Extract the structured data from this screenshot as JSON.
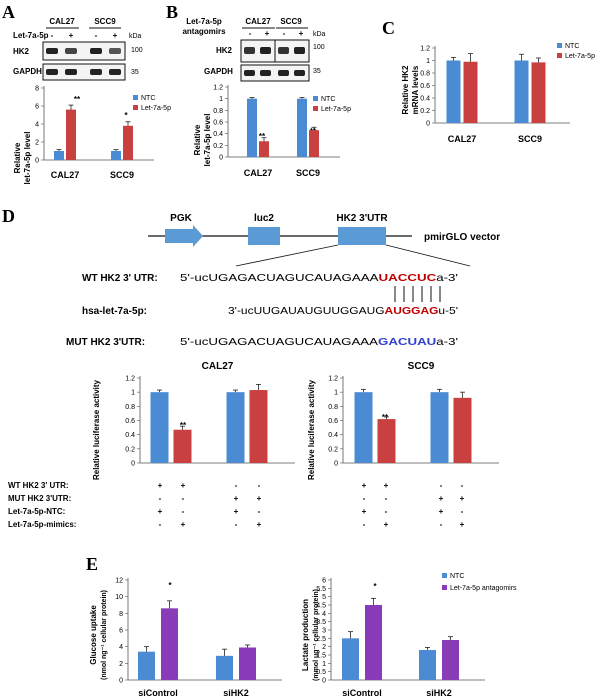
{
  "panels": {
    "A": {
      "letter": "A",
      "cells": [
        "CAL27",
        "SCC9"
      ],
      "row_label": "Let-7a-5p",
      "signs": [
        "-",
        "+",
        "-",
        "+"
      ],
      "blot_labels": [
        "HK2",
        "GAPDH"
      ],
      "kda": "kDa",
      "markers": [
        "100",
        "35"
      ],
      "ylabel": [
        "Relative",
        "let-7a-5p level"
      ],
      "sig": [
        "**",
        "*"
      ]
    },
    "B": {
      "letter": "B",
      "cells": [
        "CAL27",
        "SCC9"
      ],
      "row_label": [
        "Let-7a-5p",
        "antagomirs"
      ],
      "signs": [
        "-",
        "+",
        "-",
        "+"
      ],
      "blot_labels": [
        "HK2",
        "GAPDH"
      ],
      "kda": "kDa",
      "markers": [
        "100",
        "35"
      ],
      "ylabel": [
        "Relative",
        "let-7a-5p level"
      ],
      "sig": [
        "**",
        "**"
      ]
    },
    "C": {
      "letter": "C",
      "ylabel": [
        "Relative HK2",
        "mRNA levels"
      ]
    },
    "D": {
      "letter": "D",
      "map": {
        "pgk": "PGK",
        "luc2": "luc2",
        "utr": "HK2 3'UTR",
        "vector": "pmirGLO vector"
      },
      "wt": {
        "label": "WT HK2 3' UTR:",
        "prefix": "5'-ucUGAGACUAGUCAUAGAAA",
        "site": "UACCUC",
        "suffix": "a-3'"
      },
      "mir": {
        "label": "hsa-let-7a-5p:",
        "prefix": "3'-ucUUGAUAUGUUGGAUG",
        "site": "AUGGAG",
        "suffix": "u-5'"
      },
      "mut": {
        "label": "MUT HK2 3'UTR:",
        "prefix": "5'-ucUGAGACUAGUCAUAGAAA",
        "site": "GACUAU",
        "suffix": "a-3'"
      },
      "ylabel": "Relative luciferase activity",
      "sig": [
        "**",
        "**"
      ],
      "table": [
        {
          "label": "WT HK2 3' UTR:",
          "signs": [
            "+",
            "+",
            "-",
            "-"
          ]
        },
        {
          "label": "MUT HK2 3'UTR:",
          "signs": [
            "-",
            "-",
            "+",
            "+"
          ]
        },
        {
          "label": "Let-7a-5p-NTC:",
          "signs": [
            "+",
            "-",
            "+",
            "-"
          ]
        },
        {
          "label": "Let-7a-5p-mimics:",
          "signs": [
            "-",
            "+",
            "-",
            "+"
          ]
        }
      ]
    },
    "E": {
      "letter": "E",
      "ylabel_left": [
        "Glucose uptake",
        "(nmol ng⁻¹ cellular protein)"
      ],
      "ylabel_right": [
        "Lactate production",
        "(mmol ug⁻¹ cellular protein)"
      ],
      "sig": [
        "*",
        "*"
      ]
    }
  },
  "colors": {
    "blue": "#4a8bd4",
    "red": "#c94040",
    "purple": "#8a3cb8",
    "seq_red": "#c00000",
    "seq_blue": "#2f3fd0"
  },
  "chart_data": [
    {
      "id": "A",
      "type": "bar",
      "categories": [
        "CAL27",
        "SCC9"
      ],
      "series": [
        {
          "name": "NTC",
          "values": [
            1,
            1
          ]
        },
        {
          "name": "Let-7a-5p",
          "values": [
            5.6,
            3.8
          ]
        }
      ],
      "errors": [
        [
          0.15,
          0.15
        ],
        [
          0.5,
          0.45
        ]
      ],
      "ylim": [
        0,
        8
      ],
      "yticks": [
        0,
        2,
        4,
        6,
        8
      ],
      "legend": "top-right"
    },
    {
      "id": "B",
      "type": "bar",
      "categories": [
        "CAL27",
        "SCC9"
      ],
      "series": [
        {
          "name": "NTC",
          "values": [
            1,
            1
          ]
        },
        {
          "name": "Let-7a-5p",
          "values": [
            0.27,
            0.46
          ]
        }
      ],
      "errors": [
        [
          0.02,
          0.02
        ],
        [
          0.06,
          0.05
        ]
      ],
      "ylim": [
        0,
        1.2
      ],
      "yticks": [
        0,
        0.2,
        0.4,
        0.6,
        0.8,
        1,
        1.2
      ],
      "legend": "top-right"
    },
    {
      "id": "C",
      "type": "bar",
      "categories": [
        "CAL27",
        "SCC9"
      ],
      "series": [
        {
          "name": "NTC",
          "values": [
            1,
            1
          ]
        },
        {
          "name": "Let-7a-5p",
          "values": [
            0.98,
            0.97
          ]
        }
      ],
      "errors": [
        [
          0.05,
          0.1
        ],
        [
          0.13,
          0.07
        ]
      ],
      "ylim": [
        0,
        1.2
      ],
      "yticks": [
        0,
        0.2,
        0.4,
        0.6,
        0.8,
        1,
        1.2
      ],
      "legend": "top-right"
    },
    {
      "id": "D-CAL27",
      "type": "bar",
      "title": "CAL27",
      "categories": [
        "WT",
        "MUT"
      ],
      "series": [
        {
          "values": [
            1,
            1
          ]
        },
        {
          "values": [
            0.47,
            1.03
          ]
        }
      ],
      "errors": [
        [
          0.03,
          0.03
        ],
        [
          0.05,
          0.08
        ]
      ],
      "ylim": [
        0,
        1.2
      ],
      "yticks": [
        0,
        0.2,
        0.4,
        0.6,
        0.8,
        1,
        1.2
      ]
    },
    {
      "id": "D-SCC9",
      "type": "bar",
      "title": "SCC9",
      "categories": [
        "WT",
        "MUT"
      ],
      "series": [
        {
          "values": [
            1,
            1
          ]
        },
        {
          "values": [
            0.62,
            0.92
          ]
        }
      ],
      "errors": [
        [
          0.04,
          0.04
        ],
        [
          0.03,
          0.08
        ]
      ],
      "ylim": [
        0,
        1.2
      ],
      "yticks": [
        0,
        0.2,
        0.4,
        0.6,
        0.8,
        1,
        1.2
      ]
    },
    {
      "id": "E-glucose",
      "type": "bar",
      "categories": [
        "siControl",
        "siHK2"
      ],
      "series": [
        {
          "name": "NTC",
          "values": [
            3.4,
            2.9
          ]
        },
        {
          "name": "Let-7a-5p antagomirs",
          "values": [
            8.6,
            3.9
          ]
        }
      ],
      "errors": [
        [
          0.6,
          0.8
        ],
        [
          0.9,
          0.3
        ]
      ],
      "ylim": [
        0,
        12
      ],
      "yticks": [
        0,
        2,
        4,
        6,
        8,
        10,
        12
      ]
    },
    {
      "id": "E-lactate",
      "type": "bar",
      "categories": [
        "siControl",
        "siHK2"
      ],
      "series": [
        {
          "name": "NTC",
          "values": [
            2.5,
            1.8
          ]
        },
        {
          "name": "Let-7a-5p antagomirs",
          "values": [
            4.5,
            2.4
          ]
        }
      ],
      "errors": [
        [
          0.4,
          0.15
        ],
        [
          0.4,
          0.2
        ]
      ],
      "ylim": [
        0,
        6
      ],
      "yticks": [
        0,
        0.5,
        1,
        1.5,
        2,
        2.5,
        3,
        3.5,
        4,
        4.5,
        5,
        5.5,
        6
      ],
      "legend": "top-right"
    }
  ]
}
